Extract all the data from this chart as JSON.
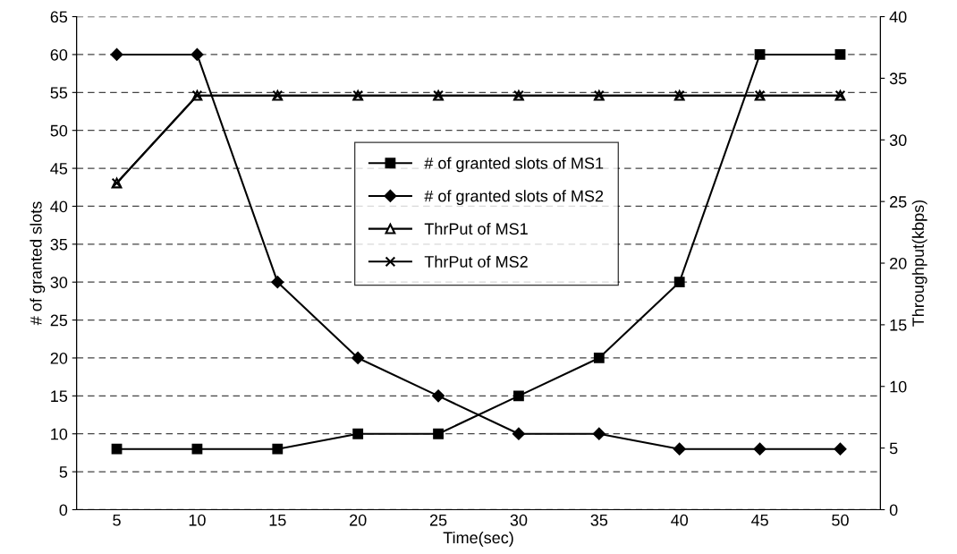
{
  "chart_data": {
    "type": "line",
    "xlabel": "Time(sec)",
    "ylabel": "# of granted slots",
    "y2label": "Throughput(kbps)",
    "categories": [
      "5",
      "10",
      "15",
      "20",
      "25",
      "30",
      "35",
      "40",
      "45",
      "50"
    ],
    "series": [
      {
        "name": "# of granted slots of MS1",
        "color": "#000000",
        "marker": "square",
        "values": [
          8,
          8,
          8,
          10,
          10,
          15,
          20,
          30,
          60,
          60
        ]
      },
      {
        "name": "# of granted slots of MS2",
        "color": "#000000",
        "marker": "diamond",
        "values": [
          60,
          60,
          30,
          20,
          15,
          10,
          10,
          8,
          8,
          8
        ]
      },
      {
        "name": "ThrPut of MS1",
        "color": "#000000",
        "marker": "triangle",
        "axis": "y2",
        "values": [
          26.5,
          33.6,
          33.6,
          33.6,
          33.6,
          33.6,
          33.6,
          33.6,
          33.6,
          33.6
        ]
      },
      {
        "name": "ThrPut of MS2",
        "color": "#000000",
        "marker": "cross",
        "axis": "y2",
        "values": [
          26.5,
          33.6,
          33.6,
          33.6,
          33.6,
          33.6,
          33.6,
          33.6,
          33.6,
          33.6
        ]
      }
    ],
    "ylim": [
      0,
      65
    ],
    "yticks": [
      0,
      5,
      10,
      15,
      20,
      25,
      30,
      35,
      40,
      45,
      50,
      55,
      60,
      65
    ],
    "y2lim": [
      0,
      40
    ],
    "y2ticks": [
      0,
      5,
      10,
      15,
      20,
      25,
      30,
      35,
      40
    ],
    "grid": "y",
    "legend": "center",
    "line_style": "solid"
  }
}
